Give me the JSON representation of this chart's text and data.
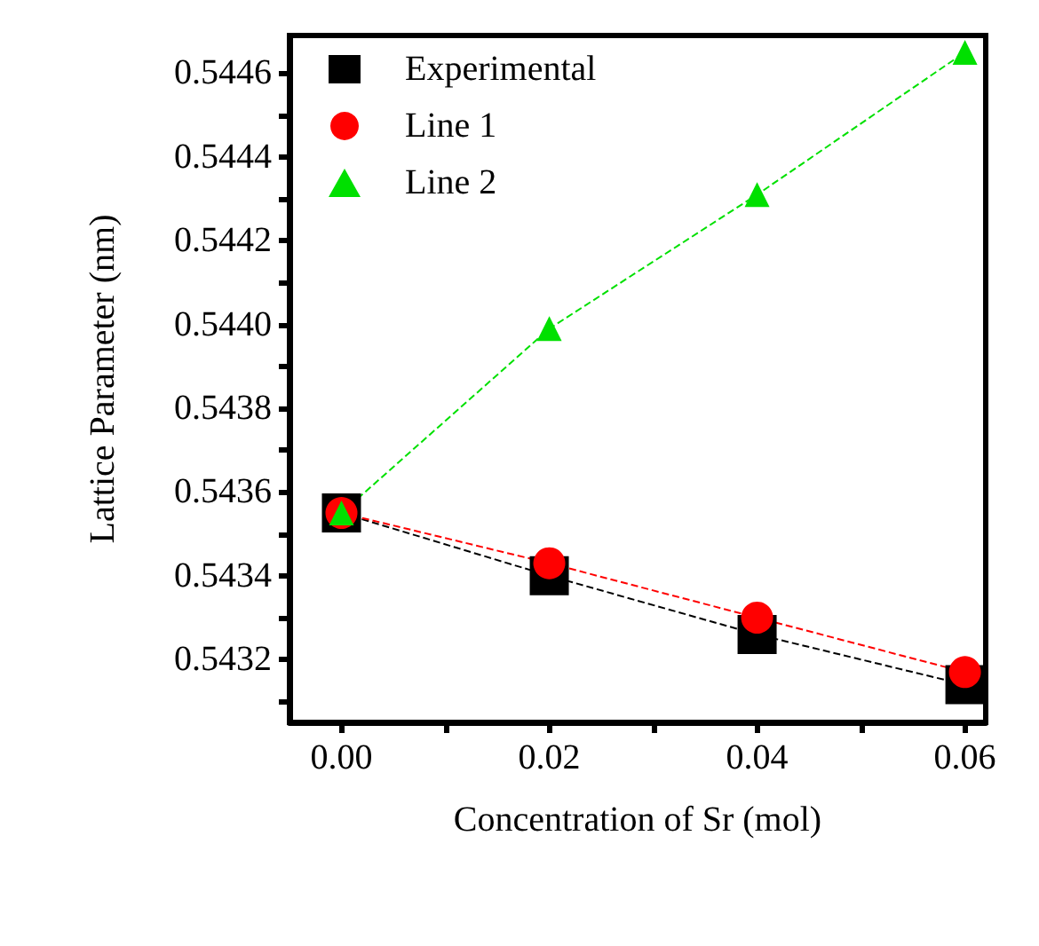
{
  "chart_data": {
    "type": "line",
    "xlabel": "Concentration of Sr (mol)",
    "ylabel": "Lattice Parameter (nm)",
    "x": [
      0,
      0.02,
      0.04,
      0.06
    ],
    "series": [
      {
        "name": "Experimental",
        "color": "#000000",
        "marker": "square",
        "values": [
          0.54355,
          0.5434,
          0.54326,
          0.54314
        ]
      },
      {
        "name": "Line 1",
        "color": "#ff0000",
        "marker": "circle",
        "values": [
          0.54355,
          0.54343,
          0.5433,
          0.54317
        ]
      },
      {
        "name": "Line 2",
        "color": "#00e000",
        "marker": "triangle",
        "values": [
          0.54355,
          0.54399,
          0.54431,
          0.54465
        ]
      }
    ],
    "xlim": [
      -0.005,
      0.062
    ],
    "xticks": [
      {
        "value": 0,
        "label": "0.00"
      },
      {
        "value": 0.01,
        "label": null
      },
      {
        "value": 0.02,
        "label": "0.02"
      },
      {
        "value": 0.03,
        "label": null
      },
      {
        "value": 0.04,
        "label": "0.04"
      },
      {
        "value": 0.05,
        "label": null
      },
      {
        "value": 0.06,
        "label": "0.06"
      }
    ],
    "ylim": [
      0.54305,
      0.54469
    ],
    "yticks": [
      {
        "value": 0.5431,
        "label": null
      },
      {
        "value": 0.5432,
        "label": "0.5432"
      },
      {
        "value": 0.5433,
        "label": null
      },
      {
        "value": 0.5434,
        "label": "0.5434"
      },
      {
        "value": 0.5435,
        "label": null
      },
      {
        "value": 0.5436,
        "label": "0.5436"
      },
      {
        "value": 0.5437,
        "label": null
      },
      {
        "value": 0.5438,
        "label": "0.5438"
      },
      {
        "value": 0.5439,
        "label": null
      },
      {
        "value": 0.544,
        "label": "0.5440"
      },
      {
        "value": 0.5441,
        "label": null
      },
      {
        "value": 0.5442,
        "label": "0.5442"
      },
      {
        "value": 0.5443,
        "label": null
      },
      {
        "value": 0.5444,
        "label": "0.5444"
      },
      {
        "value": 0.5445,
        "label": null
      },
      {
        "value": 0.5446,
        "label": "0.5446"
      }
    ],
    "grid": false,
    "legend": "top left",
    "line_style": "dashed"
  }
}
